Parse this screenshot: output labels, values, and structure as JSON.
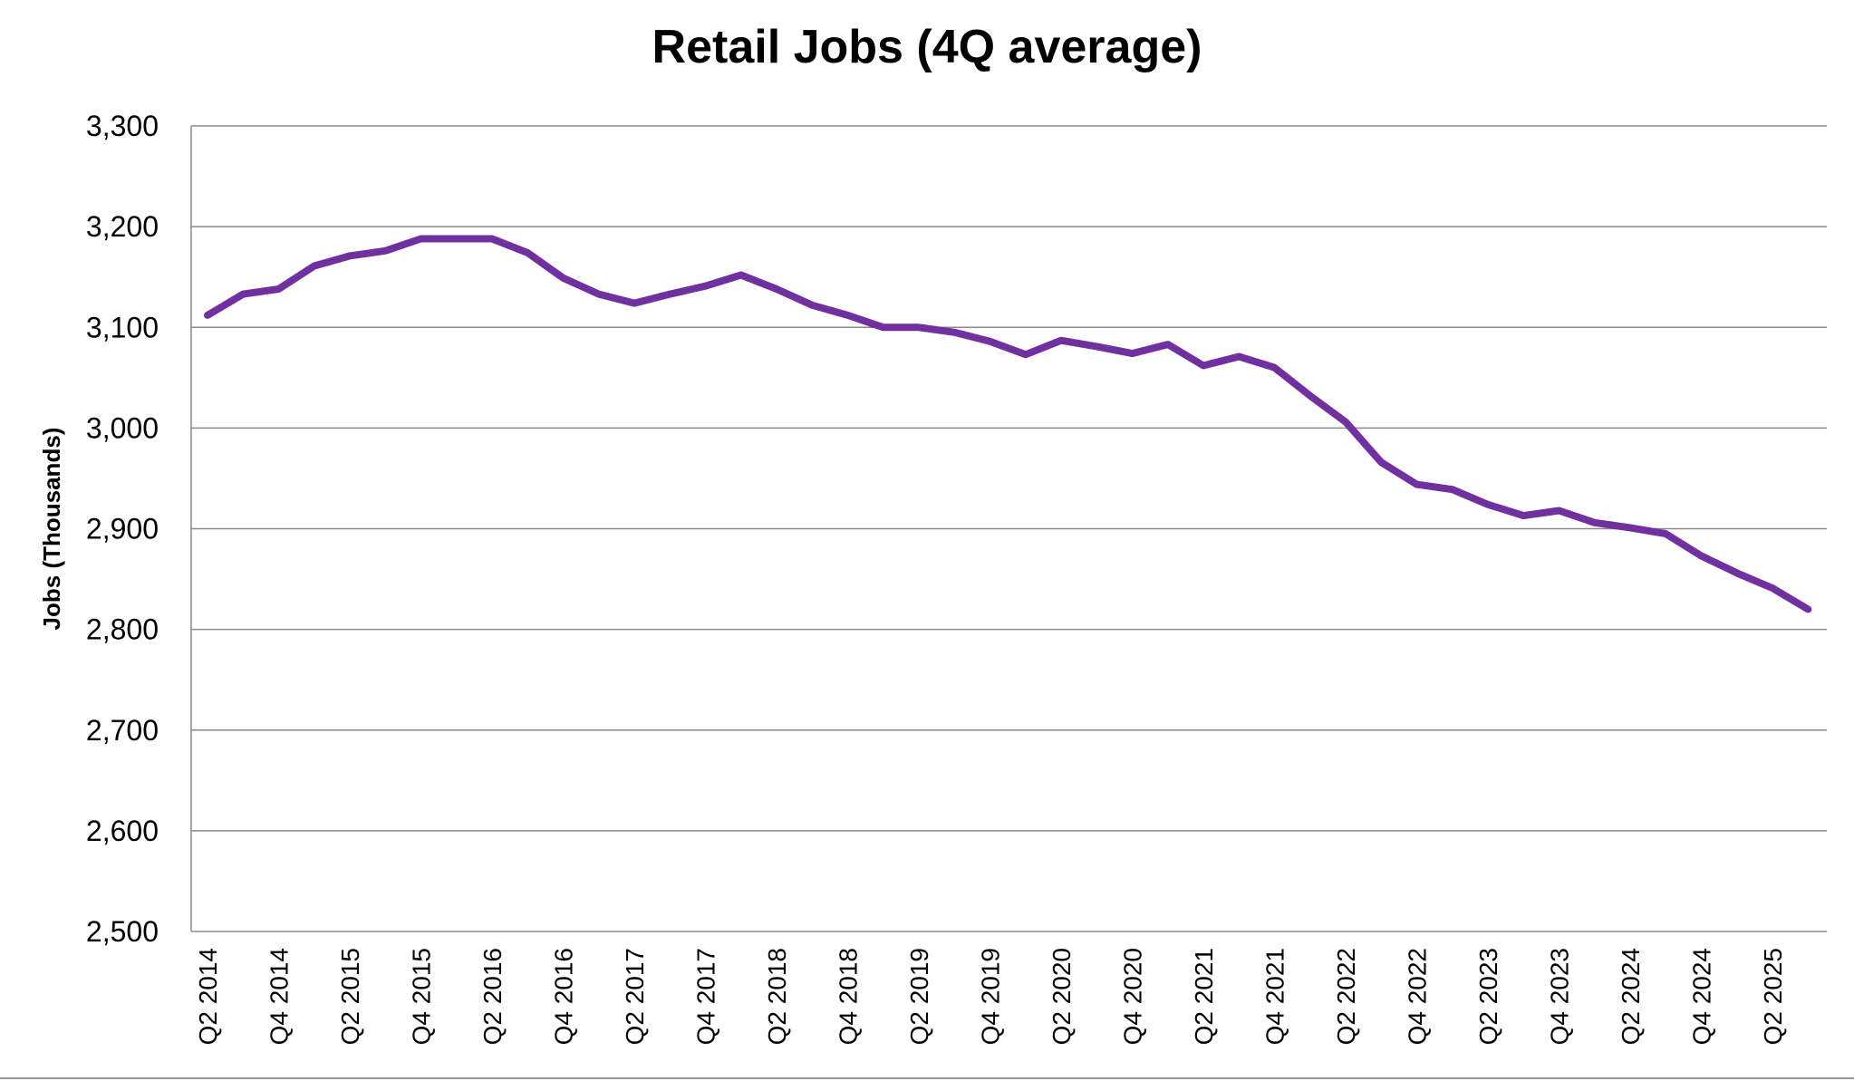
{
  "chart_data": {
    "type": "line",
    "title": "Retail Jobs (4Q average)",
    "xlabel": "",
    "ylabel": "Jobs (Thousands)",
    "ylim": [
      2500,
      3300
    ],
    "yticks": [
      "2,500",
      "2,600",
      "2,700",
      "2,800",
      "2,900",
      "3,000",
      "3,100",
      "3,200",
      "3,300"
    ],
    "grid": true,
    "line_color": "#7030A0",
    "categories": [
      "Q2 2014",
      "Q3 2014",
      "Q4 2014",
      "Q1 2015",
      "Q2 2015",
      "Q3 2015",
      "Q4 2015",
      "Q1 2016",
      "Q2 2016",
      "Q3 2016",
      "Q4 2016",
      "Q1 2017",
      "Q2 2017",
      "Q3 2017",
      "Q4 2017",
      "Q1 2018",
      "Q2 2018",
      "Q3 2018",
      "Q4 2018",
      "Q1 2019",
      "Q2 2019",
      "Q3 2019",
      "Q4 2019",
      "Q1 2020",
      "Q2 2020",
      "Q3 2020",
      "Q4 2020",
      "Q1 2021",
      "Q2 2021",
      "Q3 2021",
      "Q4 2021",
      "Q1 2022",
      "Q2 2022",
      "Q3 2022",
      "Q4 2022",
      "Q1 2023",
      "Q2 2023",
      "Q3 2023",
      "Q4 2023",
      "Q1 2024",
      "Q2 2024",
      "Q3 2024",
      "Q4 2024",
      "Q1 2025",
      "Q2 2025",
      "Q3 2025"
    ],
    "tick_labels": [
      "Q2 2014",
      "Q4 2014",
      "Q2 2015",
      "Q4 2015",
      "Q2 2016",
      "Q4 2016",
      "Q2 2017",
      "Q4 2017",
      "Q2 2018",
      "Q4 2018",
      "Q2 2019",
      "Q4 2019",
      "Q2 2020",
      "Q4 2020",
      "Q2 2021",
      "Q4 2021",
      "Q2 2022",
      "Q4 2022",
      "Q2 2023",
      "Q4 2023",
      "Q2 2024",
      "Q4 2024",
      "Q2 2025"
    ],
    "values": [
      3112,
      3133,
      3138,
      3161,
      3171,
      3176,
      3188,
      3188,
      3188,
      3174,
      3149,
      3133,
      3124,
      3133,
      3141,
      3152,
      3138,
      3122,
      3112,
      3100,
      3100,
      3095,
      3086,
      3073,
      3087,
      3081,
      3074,
      3083,
      3062,
      3071,
      3060,
      3032,
      3006,
      2966,
      2944,
      2939,
      2924,
      2913,
      2918,
      2906,
      2901,
      2895,
      2873,
      2856,
      2841,
      2820
    ]
  }
}
